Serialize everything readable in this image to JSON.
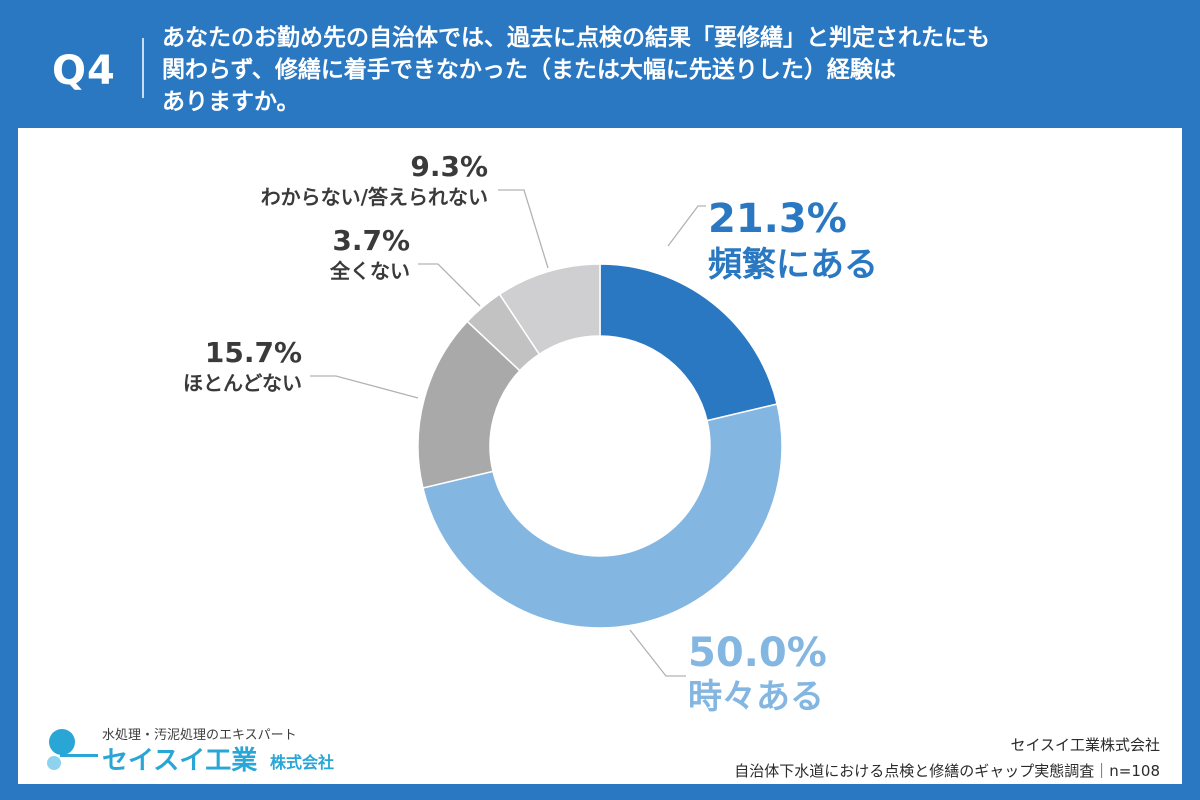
{
  "header": {
    "question_label": "Q4",
    "question_text": "あなたのお勤め先の自治体では、過去に点検の結果「要修繕」と判定されたにも\n関わらず、修繕に着手できなかった（または大幅に先送りした）経験は\nありますか。"
  },
  "colors": {
    "frame": "#2a78c2",
    "slice_frequent": "#2a78c2",
    "slice_sometimes": "#83b6e1",
    "slice_rarely": "#a9a9a9",
    "slice_never": "#c2c2c2",
    "slice_unknown": "#cfcfd1",
    "label_dark": "#3a3a3a",
    "logo": "#2aa6d6"
  },
  "chart_data": {
    "type": "pie",
    "donut": true,
    "unit": "%",
    "slices": [
      {
        "label": "頻繁にある",
        "value": 21.3,
        "value_label": "21.3%",
        "color": "#2a78c2"
      },
      {
        "label": "時々ある",
        "value": 50.0,
        "value_label": "50.0%",
        "color": "#83b6e1"
      },
      {
        "label": "ほとんどない",
        "value": 15.7,
        "value_label": "15.7%",
        "color": "#a9a9a9"
      },
      {
        "label": "全くない",
        "value": 3.7,
        "value_label": "3.7%",
        "color": "#c2c2c2"
      },
      {
        "label": "わからない/答えられない",
        "value": 9.3,
        "value_label": "9.3%",
        "color": "#cfcfd1"
      }
    ]
  },
  "footer": {
    "logo_tagline": "水処理・汚泥処理のエキスパート",
    "logo_name": "セイスイ工業",
    "logo_suffix": "株式会社",
    "source_company": "セイスイ工業株式会社",
    "source_survey": "自治体下水道における点検と修繕のギャップ実態調査｜n=108"
  }
}
